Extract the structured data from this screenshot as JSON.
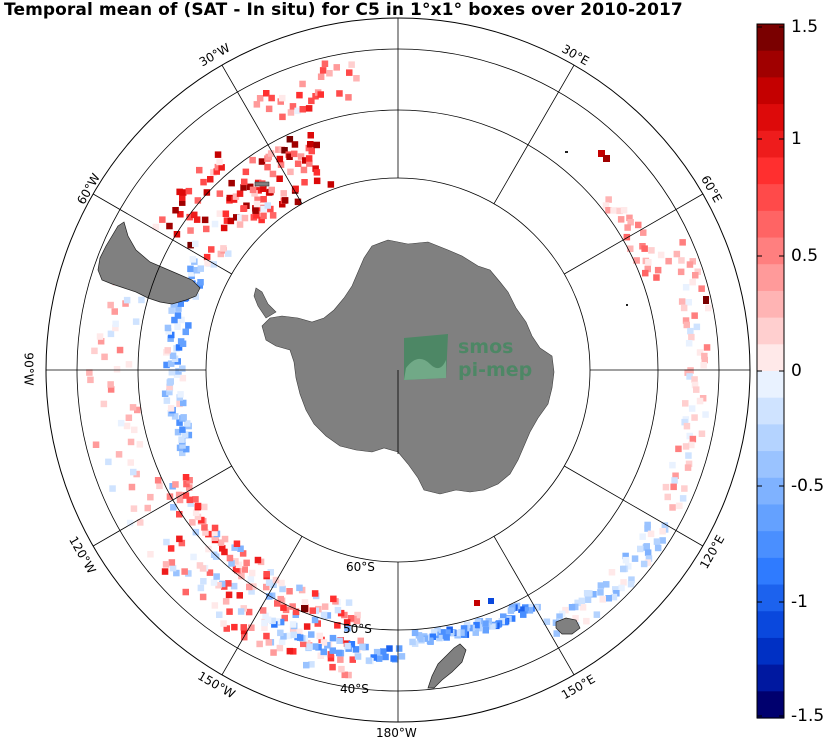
{
  "title": "Temporal mean of (SAT - In situ) for C5 in 1°x1° boxes over 2010-2017",
  "map": {
    "projection": "south-polar-stereographic",
    "extent_lat_min": -40,
    "parallels": [
      {
        "label": "60°S"
      },
      {
        "label": "50°S"
      },
      {
        "label": "40°S"
      }
    ],
    "meridians": [
      {
        "label": "30°E"
      },
      {
        "label": "60°E"
      },
      {
        "label": "90°W"
      },
      {
        "label": "120°E"
      },
      {
        "label": "150°E"
      },
      {
        "label": "180°W"
      },
      {
        "label": "150°W"
      },
      {
        "label": "120°W"
      },
      {
        "label": "60°W"
      },
      {
        "label": "30°W"
      }
    ],
    "land_color": "#808080",
    "watermark": {
      "line1": "smos",
      "line2": "pi-mep",
      "color": "#3f8a5e"
    }
  },
  "colorbar": {
    "range": [
      -1.5,
      1.5
    ],
    "ticks": [
      "1.5",
      "1",
      "0.5",
      "0",
      "-0.5",
      "-1",
      "-1.5"
    ],
    "colormap": "blue-white-red",
    "max_color": "#7a0000",
    "min_color": "#00006e"
  }
}
